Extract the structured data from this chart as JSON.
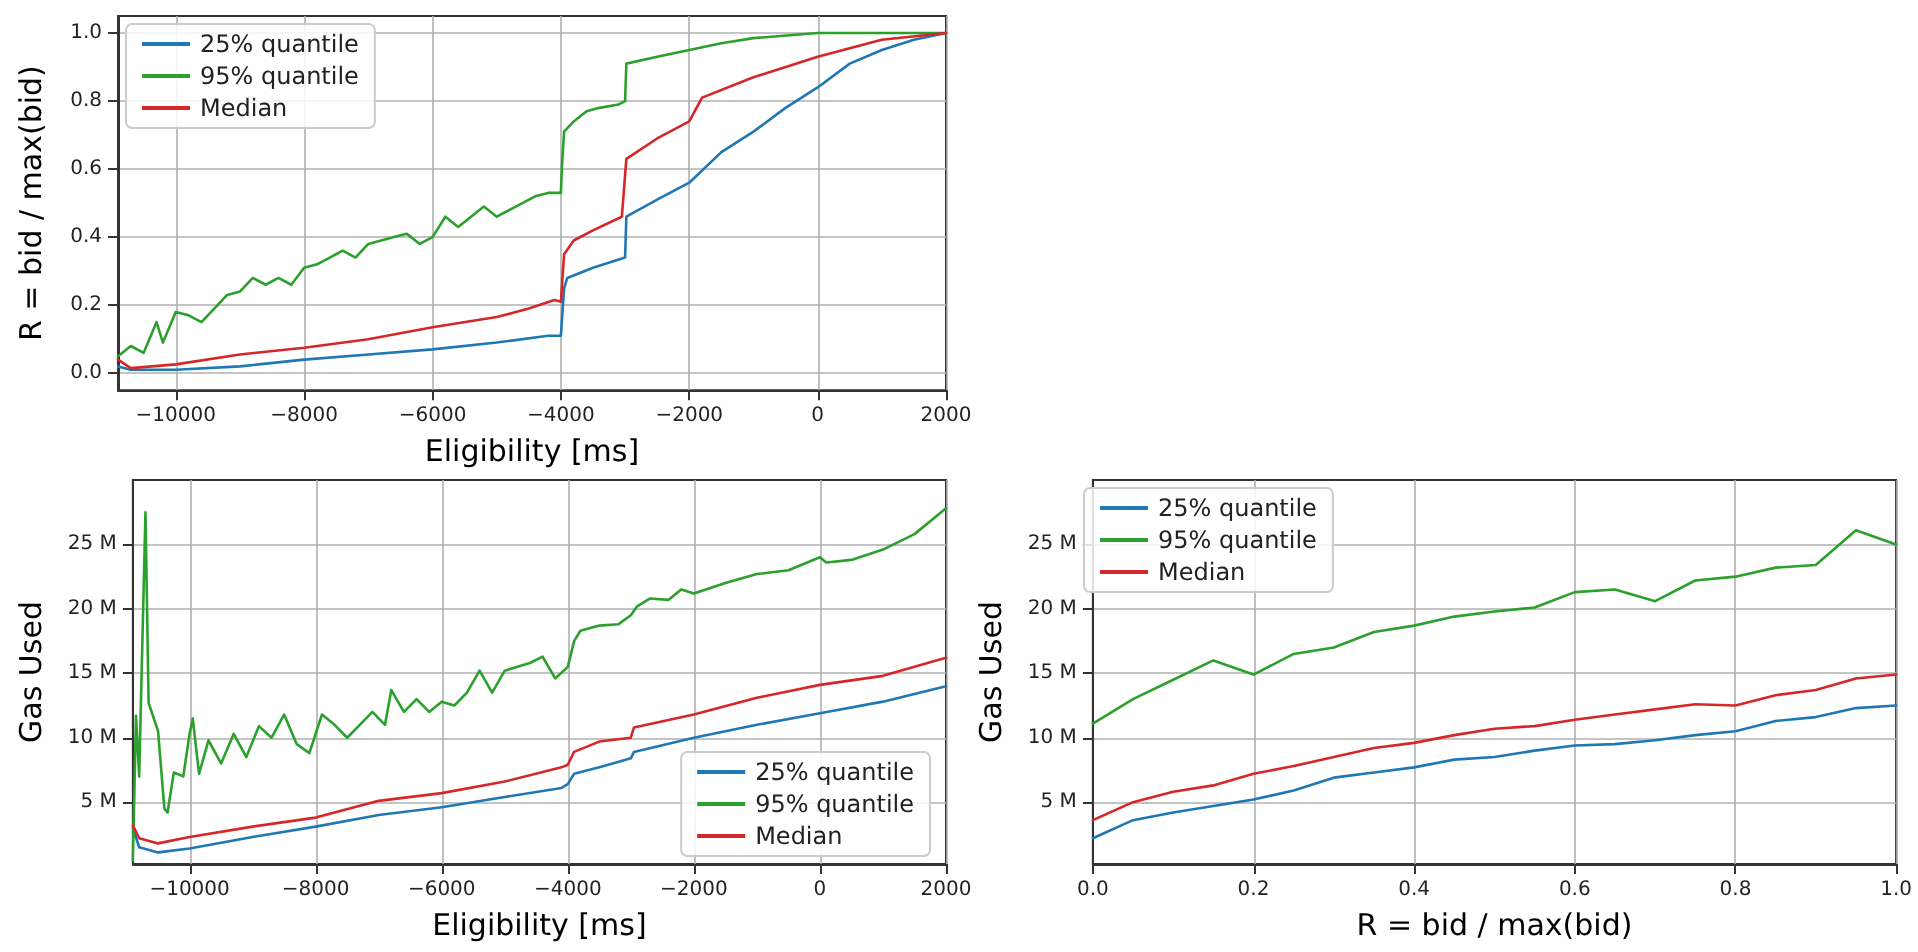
{
  "chart_data": [
    {
      "type": "line",
      "xlabel": "Eligibility [ms]",
      "ylabel": "R = bid / max(bid)",
      "xlim": [
        -10900,
        2000
      ],
      "ylim": [
        -0.05,
        1.05
      ],
      "xticks": [
        {
          "value": -10000,
          "label": "−10000"
        },
        {
          "value": -8000,
          "label": "−8000"
        },
        {
          "value": -6000,
          "label": "−6000"
        },
        {
          "value": -4000,
          "label": "−4000"
        },
        {
          "value": -2000,
          "label": "−2000"
        },
        0,
        2000
      ],
      "yticks": [
        {
          "value": 0,
          "label": "0.0"
        },
        0.2,
        0.4,
        0.6,
        0.8,
        {
          "value": 1,
          "label": "1.0"
        }
      ],
      "grid": true,
      "legend": "top left",
      "marker": "none",
      "line_style": "solid",
      "series": [
        {
          "name": "25% quantile",
          "color": "#1f77b4",
          "x": [
            -10900,
            -10700,
            -10000,
            -9000,
            -8000,
            -7000,
            -6000,
            -5000,
            -4200,
            -4000,
            -3950,
            -3900,
            -3500,
            -3000,
            -2980,
            -2500,
            -2000,
            -1500,
            -1000,
            -500,
            0,
            500,
            1000,
            1500,
            2000
          ],
          "values": [
            0.02,
            0.01,
            0.01,
            0.02,
            0.04,
            0.055,
            0.07,
            0.09,
            0.11,
            0.11,
            0.25,
            0.28,
            0.31,
            0.34,
            0.46,
            0.51,
            0.56,
            0.65,
            0.71,
            0.78,
            0.84,
            0.91,
            0.95,
            0.98,
            1.0
          ]
        },
        {
          "name": "95% quantile",
          "color": "#2ca02c",
          "x": [
            -10900,
            -10700,
            -10500,
            -10300,
            -10200,
            -10000,
            -9800,
            -9600,
            -9400,
            -9200,
            -9000,
            -8800,
            -8600,
            -8400,
            -8200,
            -8000,
            -7800,
            -7600,
            -7400,
            -7200,
            -7000,
            -6800,
            -6600,
            -6400,
            -6200,
            -6000,
            -5800,
            -5600,
            -5400,
            -5200,
            -5000,
            -4800,
            -4600,
            -4400,
            -4200,
            -4000,
            -3980,
            -3950,
            -3800,
            -3600,
            -3400,
            -3100,
            -3000,
            -2980,
            -2500,
            -2000,
            -1500,
            -1000,
            0,
            2000
          ],
          "values": [
            0.05,
            0.08,
            0.06,
            0.15,
            0.09,
            0.18,
            0.17,
            0.15,
            0.19,
            0.23,
            0.24,
            0.28,
            0.26,
            0.28,
            0.26,
            0.31,
            0.32,
            0.34,
            0.36,
            0.34,
            0.38,
            0.39,
            0.4,
            0.41,
            0.38,
            0.4,
            0.46,
            0.43,
            0.46,
            0.49,
            0.46,
            0.48,
            0.5,
            0.52,
            0.53,
            0.53,
            0.62,
            0.71,
            0.74,
            0.77,
            0.78,
            0.79,
            0.8,
            0.91,
            0.93,
            0.95,
            0.97,
            0.985,
            1.0,
            1.0
          ]
        },
        {
          "name": "Median",
          "color": "#d62728",
          "x": [
            -10900,
            -10700,
            -10000,
            -9000,
            -8000,
            -7000,
            -6000,
            -5000,
            -4500,
            -4100,
            -4000,
            -3950,
            -3800,
            -3500,
            -3050,
            -2980,
            -2500,
            -2000,
            -1800,
            -1000,
            0,
            1000,
            2000
          ],
          "values": [
            0.04,
            0.015,
            0.026,
            0.055,
            0.075,
            0.1,
            0.135,
            0.165,
            0.19,
            0.215,
            0.21,
            0.35,
            0.39,
            0.42,
            0.46,
            0.63,
            0.69,
            0.74,
            0.81,
            0.87,
            0.93,
            0.98,
            1.0
          ]
        }
      ]
    },
    {
      "type": "line",
      "xlabel": "Eligibility [ms]",
      "ylabel": "Gas Used",
      "xlim": [
        -10900,
        2000
      ],
      "ylim": [
        0.2,
        30
      ],
      "xticks": [
        {
          "value": -10000,
          "label": "−10000"
        },
        {
          "value": -8000,
          "label": "−8000"
        },
        {
          "value": -6000,
          "label": "−6000"
        },
        {
          "value": -4000,
          "label": "−4000"
        },
        {
          "value": -2000,
          "label": "−2000"
        },
        0,
        2000
      ],
      "yticks": [
        {
          "value": 5,
          "label": "5 M"
        },
        {
          "value": 10,
          "label": "10 M"
        },
        {
          "value": 15,
          "label": "15 M"
        },
        {
          "value": 20,
          "label": "20 M"
        },
        {
          "value": 25,
          "label": "25 M"
        }
      ],
      "grid": true,
      "legend": "bottom right",
      "marker": "none",
      "line_style": "solid",
      "series": [
        {
          "name": "25% quantile",
          "color": "#1f77b4",
          "x": [
            -10900,
            -10800,
            -10500,
            -10000,
            -9000,
            -8000,
            -7000,
            -6000,
            -5000,
            -4100,
            -4000,
            -3900,
            -3500,
            -3000,
            -2950,
            -2000,
            -1000,
            0,
            1000,
            2000
          ],
          "values": [
            3.0,
            1.5,
            1.1,
            1.4,
            2.3,
            3.1,
            4.0,
            4.6,
            5.4,
            6.1,
            6.4,
            7.2,
            7.7,
            8.4,
            8.9,
            10.0,
            11.0,
            11.9,
            12.8,
            14.0
          ]
        },
        {
          "name": "95% quantile",
          "color": "#2ca02c",
          "x": [
            -10900,
            -10850,
            -10800,
            -10700,
            -10650,
            -10500,
            -10400,
            -10350,
            -10250,
            -10100,
            -10000,
            -9950,
            -9850,
            -9700,
            -9500,
            -9300,
            -9100,
            -8900,
            -8700,
            -8500,
            -8300,
            -8100,
            -7900,
            -7700,
            -7500,
            -7300,
            -7100,
            -6900,
            -6800,
            -6600,
            -6400,
            -6200,
            -6000,
            -5800,
            -5600,
            -5400,
            -5200,
            -5000,
            -4800,
            -4600,
            -4400,
            -4200,
            -4000,
            -3900,
            -3800,
            -3500,
            -3200,
            -3000,
            -2900,
            -2700,
            -2400,
            -2200,
            -2000,
            -1500,
            -1000,
            -500,
            0,
            100,
            500,
            1000,
            1500,
            2000
          ],
          "values": [
            0.5,
            11.7,
            7.0,
            27.5,
            12.7,
            10.5,
            4.5,
            4.2,
            7.3,
            7.0,
            10.3,
            11.5,
            7.2,
            9.8,
            8.0,
            10.3,
            8.5,
            10.9,
            10.0,
            11.8,
            9.5,
            8.8,
            11.8,
            11.0,
            10.0,
            11.0,
            12.0,
            11.0,
            13.7,
            12.0,
            13.0,
            12.0,
            12.8,
            12.5,
            13.5,
            15.2,
            13.5,
            15.2,
            15.5,
            15.8,
            16.3,
            14.6,
            15.5,
            17.5,
            18.3,
            18.7,
            18.8,
            19.5,
            20.2,
            20.8,
            20.7,
            21.5,
            21.2,
            22.0,
            22.7,
            23.0,
            24.0,
            23.6,
            23.8,
            24.6,
            25.8,
            27.8
          ]
        },
        {
          "name": "Median",
          "color": "#d62728",
          "x": [
            -10900,
            -10800,
            -10500,
            -10000,
            -9000,
            -8000,
            -7000,
            -6000,
            -5000,
            -4100,
            -4000,
            -3900,
            -3500,
            -3000,
            -2950,
            -2000,
            -1000,
            0,
            1000,
            2000
          ],
          "values": [
            3.2,
            2.2,
            1.8,
            2.3,
            3.1,
            3.8,
            5.1,
            5.7,
            6.6,
            7.7,
            7.9,
            8.9,
            9.7,
            10.0,
            10.8,
            11.8,
            13.1,
            14.1,
            14.8,
            16.2
          ]
        }
      ]
    },
    {
      "type": "line",
      "xlabel": "R = bid / max(bid)",
      "ylabel": "Gas Used",
      "xlim": [
        0,
        1
      ],
      "ylim": [
        0.2,
        30
      ],
      "xticks": [
        {
          "value": 0,
          "label": "0.0"
        },
        0.2,
        0.4,
        0.6,
        0.8,
        {
          "value": 1,
          "label": "1.0"
        }
      ],
      "yticks": [
        {
          "value": 5,
          "label": "5 M"
        },
        {
          "value": 10,
          "label": "10 M"
        },
        {
          "value": 15,
          "label": "15 M"
        },
        {
          "value": 20,
          "label": "20 M"
        },
        {
          "value": 25,
          "label": "25 M"
        }
      ],
      "grid": true,
      "legend": "top left",
      "marker": "none",
      "line_style": "solid",
      "x": [
        0,
        0.05,
        0.1,
        0.15,
        0.2,
        0.25,
        0.3,
        0.35,
        0.4,
        0.45,
        0.5,
        0.55,
        0.6,
        0.65,
        0.7,
        0.75,
        0.8,
        0.85,
        0.9,
        0.95,
        1.0
      ],
      "series": [
        {
          "name": "25% quantile",
          "color": "#1f77b4",
          "values": [
            2.2,
            3.6,
            4.2,
            4.7,
            5.2,
            5.9,
            6.9,
            7.3,
            7.7,
            8.3,
            8.5,
            9.0,
            9.4,
            9.5,
            9.8,
            10.2,
            10.5,
            11.3,
            11.6,
            12.3,
            12.5
          ]
        },
        {
          "name": "95% quantile",
          "color": "#2ca02c",
          "values": [
            11.1,
            13.0,
            14.5,
            16.0,
            14.9,
            16.5,
            17.0,
            18.2,
            18.7,
            19.4,
            19.8,
            20.1,
            21.3,
            21.5,
            20.6,
            22.2,
            22.5,
            23.2,
            23.4,
            26.1,
            25.0
          ]
        },
        {
          "name": "Median",
          "color": "#d62728",
          "values": [
            3.6,
            5.0,
            5.8,
            6.3,
            7.2,
            7.8,
            8.5,
            9.2,
            9.6,
            10.2,
            10.7,
            10.9,
            11.4,
            11.8,
            12.2,
            12.6,
            12.5,
            13.3,
            13.7,
            14.6,
            14.9
          ]
        }
      ]
    }
  ]
}
